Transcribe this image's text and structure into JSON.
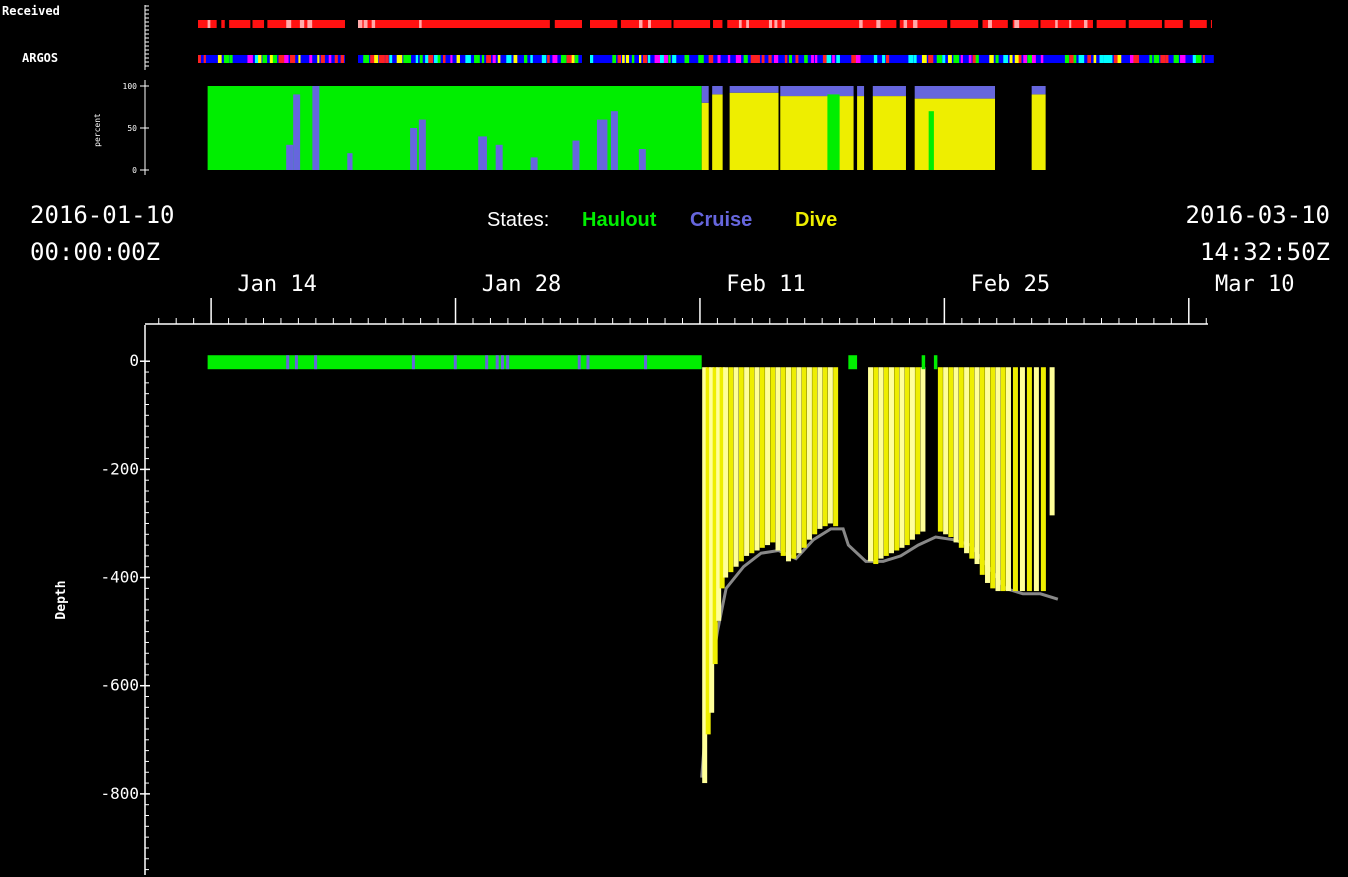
{
  "colors": {
    "haulout": "#00ee00",
    "cruise": "#6666dd",
    "dive": "#eeee00",
    "dive_light": "#ffff99",
    "received": "#ff1111",
    "received_gap": "#ffaaaa",
    "background": "#000000",
    "axis": "#ffffff",
    "floor": "#888888"
  },
  "header": {
    "received_label": "Received",
    "argos_label": "ARGOS",
    "percent_label": "percent",
    "start_date": "2016-01-10",
    "start_time": "00:00:00Z",
    "end_date": "2016-03-10",
    "end_time": "14:32:50Z",
    "states_label": "States:",
    "state_haulout": "Haulout",
    "state_cruise": "Cruise",
    "state_dive": "Dive"
  },
  "chart_data": {
    "type": "bar",
    "time_axis": {
      "ticks": [
        "Jan 14",
        "Jan 28",
        "Feb 11",
        "Feb 25",
        "Mar 10"
      ],
      "tick_days": [
        3.5,
        17.5,
        31.5,
        45.5,
        59.5
      ],
      "range_days": [
        0,
        60.6
      ]
    },
    "argos_palette": [
      "#ff2222",
      "#ffff00",
      "#00ff00",
      "#00ffff",
      "#0000ff",
      "#ff00ff"
    ],
    "percent_panel": {
      "ylabel": "percent",
      "yticks": [
        0,
        50,
        100
      ],
      "ylim": [
        0,
        100
      ],
      "segments": [
        {
          "start": 3.3,
          "end": 31.6,
          "haulout": 100,
          "cruise_spikes": [
            [
              7.8,
              8.2,
              30
            ],
            [
              8.2,
              8.6,
              90
            ],
            [
              9.3,
              9.7,
              100
            ],
            [
              11.3,
              11.6,
              20
            ],
            [
              14.9,
              15.3,
              50
            ],
            [
              15.4,
              15.8,
              60
            ],
            [
              18.8,
              19.3,
              40
            ],
            [
              19.8,
              20.2,
              30
            ],
            [
              21.8,
              22.2,
              15
            ],
            [
              24.2,
              24.6,
              35
            ],
            [
              25.6,
              26.2,
              60
            ],
            [
              26.4,
              26.8,
              70
            ],
            [
              28.0,
              28.4,
              25
            ]
          ]
        },
        {
          "start": 31.6,
          "end": 32.0,
          "dive": 80,
          "cruise": 20
        },
        {
          "start": 32.2,
          "end": 32.8,
          "dive": 90,
          "cruise": 10
        },
        {
          "start": 33.2,
          "end": 36.0,
          "dive": 92,
          "cruise": 8
        },
        {
          "start": 36.1,
          "end": 40.3,
          "dive": 88,
          "cruise": 12,
          "haulout_spike": [
            38.8,
            39.5,
            90
          ]
        },
        {
          "start": 40.5,
          "end": 40.9,
          "dive": 88,
          "cruise": 12
        },
        {
          "start": 41.4,
          "end": 43.3,
          "dive": 88,
          "cruise": 12
        },
        {
          "start": 43.8,
          "end": 48.4,
          "dive": 85,
          "cruise": 15,
          "haulout_spike": [
            44.6,
            44.9,
            70
          ]
        },
        {
          "start": 50.5,
          "end": 51.3,
          "dive": 90,
          "cruise": 10
        }
      ]
    },
    "depth_panel": {
      "ylabel": "Depth",
      "yticks": [
        0,
        -200,
        -400,
        -600,
        -800
      ],
      "ylim": [
        -950,
        30
      ],
      "haulout_band": {
        "start": 3.3,
        "end": 31.6
      },
      "haulout_blocks": [
        [
          40.0,
          40.5
        ],
        [
          44.2,
          44.4
        ],
        [
          44.9,
          45.1
        ]
      ],
      "cruise_marks": [
        7.8,
        8.3,
        9.4,
        15.0,
        17.4,
        19.2,
        19.8,
        20.1,
        20.4,
        24.5,
        25.0,
        28.3
      ],
      "floor": [
        [
          31.6,
          -770
        ],
        [
          32.0,
          -600
        ],
        [
          32.5,
          -500
        ],
        [
          33.0,
          -420
        ],
        [
          34.0,
          -380
        ],
        [
          35.0,
          -355
        ],
        [
          36.0,
          -350
        ],
        [
          37.0,
          -365
        ],
        [
          38.0,
          -330
        ],
        [
          39.0,
          -310
        ],
        [
          39.7,
          -310
        ],
        [
          40.0,
          -340
        ],
        [
          41.0,
          -370
        ],
        [
          42.0,
          -370
        ],
        [
          43.0,
          -360
        ],
        [
          44.0,
          -340
        ],
        [
          45.0,
          -325
        ],
        [
          46.0,
          -330
        ],
        [
          47.0,
          -340
        ],
        [
          48.0,
          -380
        ],
        [
          49.0,
          -420
        ],
        [
          50.0,
          -430
        ],
        [
          51.0,
          -430
        ],
        [
          52.0,
          -440
        ]
      ],
      "dives": [
        [
          31.8,
          -780
        ],
        [
          32.0,
          -690
        ],
        [
          32.2,
          -650
        ],
        [
          32.4,
          -560
        ],
        [
          32.6,
          -480
        ],
        [
          32.8,
          -420
        ],
        [
          33.0,
          -400
        ],
        [
          33.3,
          -390
        ],
        [
          33.6,
          -380
        ],
        [
          33.9,
          -370
        ],
        [
          34.2,
          -360
        ],
        [
          34.5,
          -355
        ],
        [
          34.8,
          -350
        ],
        [
          35.1,
          -345
        ],
        [
          35.4,
          -340
        ],
        [
          35.7,
          -335
        ],
        [
          36.0,
          -350
        ],
        [
          36.3,
          -360
        ],
        [
          36.6,
          -370
        ],
        [
          36.9,
          -365
        ],
        [
          37.2,
          -355
        ],
        [
          37.5,
          -345
        ],
        [
          37.8,
          -330
        ],
        [
          38.1,
          -320
        ],
        [
          38.4,
          -310
        ],
        [
          38.7,
          -305
        ],
        [
          39.0,
          -300
        ],
        [
          39.3,
          -305
        ],
        [
          41.3,
          -370
        ],
        [
          41.6,
          -375
        ],
        [
          41.9,
          -365
        ],
        [
          42.2,
          -360
        ],
        [
          42.5,
          -355
        ],
        [
          42.8,
          -350
        ],
        [
          43.1,
          -345
        ],
        [
          43.4,
          -340
        ],
        [
          43.7,
          -330
        ],
        [
          44.0,
          -320
        ],
        [
          44.3,
          -315
        ],
        [
          45.3,
          -315
        ],
        [
          45.6,
          -320
        ],
        [
          45.9,
          -325
        ],
        [
          46.2,
          -335
        ],
        [
          46.5,
          -345
        ],
        [
          46.8,
          -355
        ],
        [
          47.1,
          -365
        ],
        [
          47.4,
          -375
        ],
        [
          47.7,
          -395
        ],
        [
          48.0,
          -410
        ],
        [
          48.3,
          -420
        ],
        [
          48.6,
          -425
        ],
        [
          48.9,
          -425
        ],
        [
          49.2,
          -425
        ],
        [
          49.6,
          -425
        ],
        [
          50.0,
          -425
        ],
        [
          50.4,
          -425
        ],
        [
          50.8,
          -425
        ],
        [
          51.2,
          -425
        ],
        [
          51.7,
          -285
        ]
      ]
    }
  }
}
